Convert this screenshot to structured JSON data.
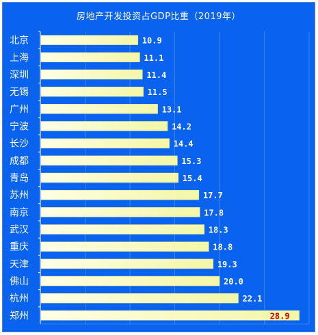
{
  "chart_data": {
    "type": "bar",
    "orientation": "horizontal",
    "title": "房地产开发投资占GDP比重（2019年）",
    "categories": [
      "北京",
      "上海",
      "深圳",
      "无锡",
      "广州",
      "宁波",
      "长沙",
      "成都",
      "青岛",
      "苏州",
      "南京",
      "武汉",
      "重庆",
      "天津",
      "佛山",
      "杭州",
      "郑州"
    ],
    "values": [
      10.9,
      11.1,
      11.4,
      11.5,
      13.1,
      14.2,
      14.4,
      15.3,
      15.4,
      17.7,
      17.8,
      18.3,
      18.8,
      19.3,
      20.0,
      22.1,
      28.9
    ],
    "value_labels": [
      "10.9",
      "11.1",
      "11.4",
      "11.5",
      "13.1",
      "14.2",
      "14.4",
      "15.3",
      "15.4",
      "17.7",
      "17.8",
      "18.3",
      "18.8",
      "19.3",
      "20.0",
      "22.1",
      "28.9"
    ],
    "xlim": [
      0,
      30
    ],
    "grid": true,
    "colors": {
      "background": "#0a63ef",
      "bar_fill_start": "#fefee6",
      "bar_fill_end": "#f3f7a6",
      "label_text": "#ffffff",
      "highlight_value": "#d20000"
    },
    "highlight_category": "郑州"
  }
}
